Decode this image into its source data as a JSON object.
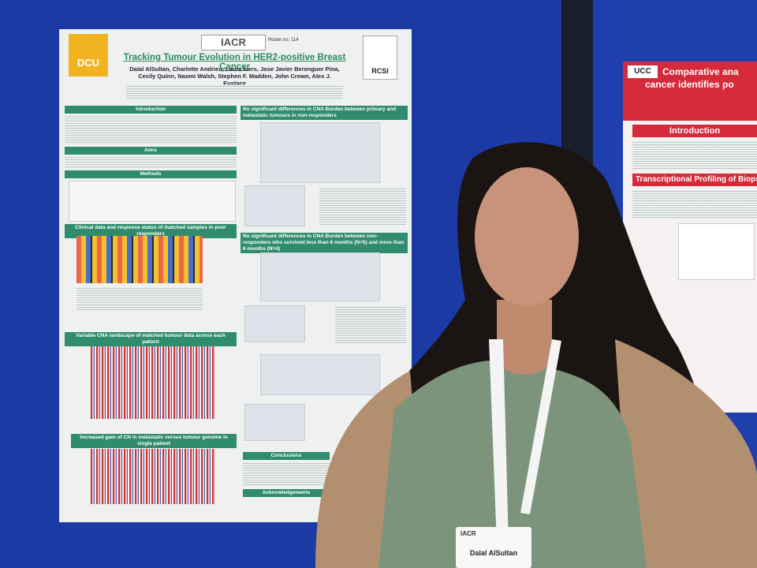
{
  "poster": {
    "logo_left": "DCU",
    "logo_center": "IACR",
    "poster_number": "Poster no. 114",
    "logo_right": "RCSI",
    "title": "Tracking Tumour Evolution in HER2-positive Breast Cancer",
    "authors": "Dalal AlSultan, Charlotte Andrieu, Laura Ivers, Jose Javier Berenguer Pina, Cecily Quinn, Naomi Walsh, Stephen F. Madden, John Crown, Alex J. Eustace",
    "left_sections": [
      "Introduction",
      "Aims",
      "Methods",
      "Clinical data and response status of matched samples in poor responders",
      "Variable CNA landscape of matched tumour data across each patient",
      "Increased gain of CN in metastatic versus tumour genome in single patient"
    ],
    "right_sections": [
      "No significant differences in CNA Burden between primary and metastatic tumours in non-responders",
      "No significant differences in CNA Burden between non-responders who survived less than 6 months (N=5) and more than 6 months (N=4)",
      "Conclusions",
      "Acknowledgements"
    ]
  },
  "side_poster": {
    "logo": "UCC",
    "title_lines": [
      "Comparative ana",
      "cancer identifies po"
    ],
    "sections": [
      "Introduction",
      "Transcriptional Profiling of Biops"
    ]
  },
  "badge": {
    "org": "IACR",
    "name": "Dalal AlSultan"
  }
}
